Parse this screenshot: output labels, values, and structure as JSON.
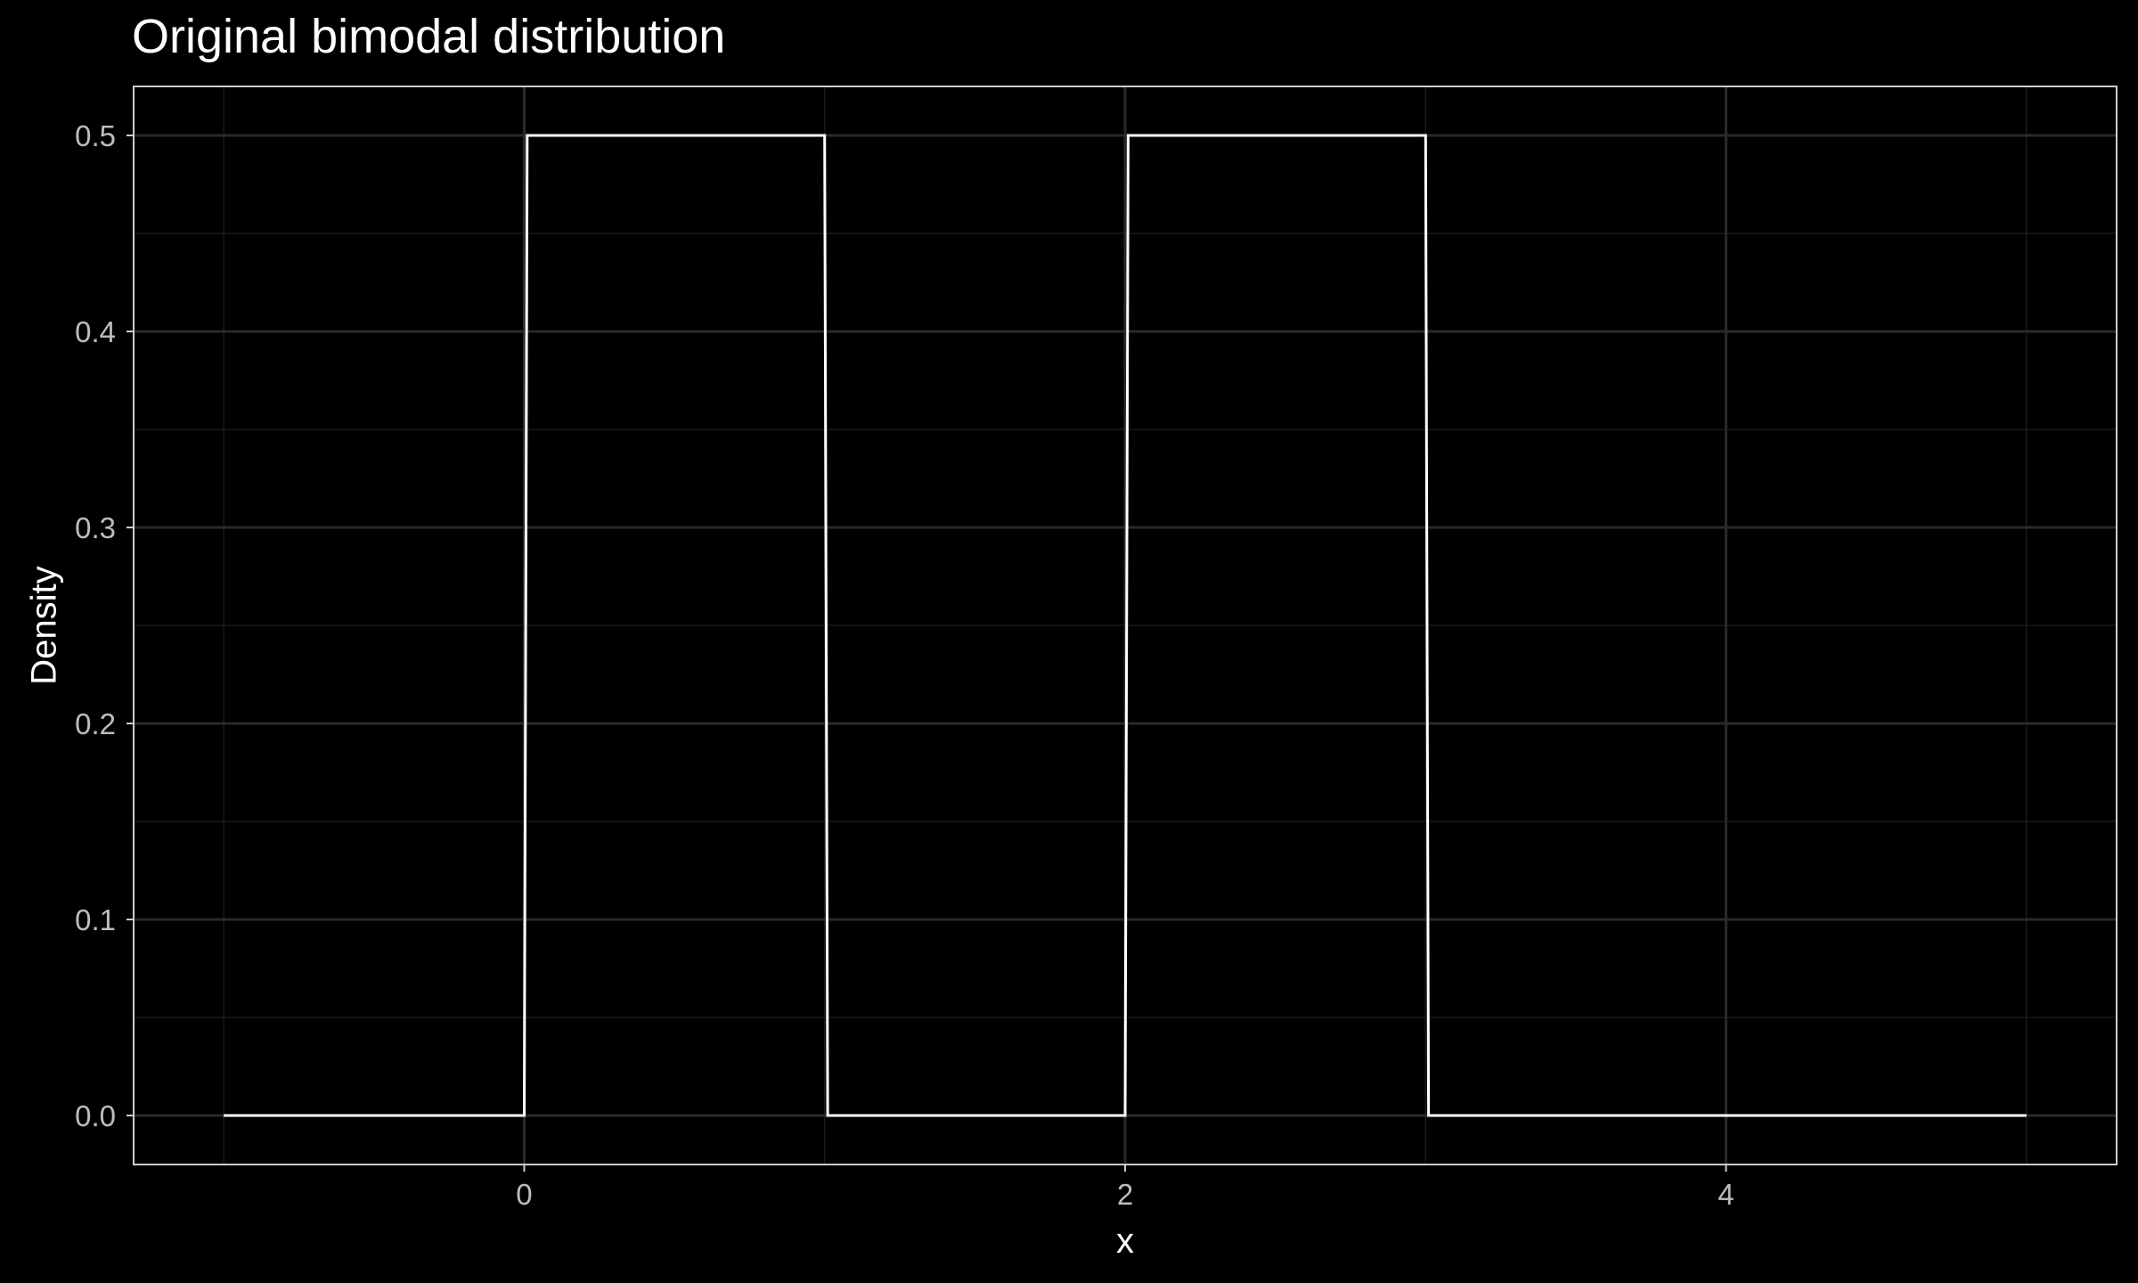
{
  "chart_data": {
    "type": "line",
    "title": "Original bimodal distribution",
    "xlabel": "x",
    "ylabel": "Density",
    "xlim": [
      -1.3,
      5.3
    ],
    "ylim": [
      -0.025,
      0.525
    ],
    "x_ticks": [
      0,
      2,
      4
    ],
    "x_tick_labels": [
      "0",
      "2",
      "4"
    ],
    "y_ticks": [
      0.0,
      0.1,
      0.2,
      0.3,
      0.4,
      0.5
    ],
    "y_tick_labels": [
      "0.0",
      "0.1",
      "0.2",
      "0.3",
      "0.4",
      "0.5"
    ],
    "x_minor_ticks": [
      -1,
      1,
      3,
      5
    ],
    "y_minor_ticks": [
      0.05,
      0.15,
      0.25,
      0.35,
      0.45
    ],
    "grid": true,
    "series": [
      {
        "x": [
          -1,
          0,
          0.01,
          1,
          1.01,
          2,
          2.01,
          3,
          3.01,
          5
        ],
        "y": [
          0,
          0,
          0.5,
          0.5,
          0,
          0,
          0.5,
          0.5,
          0,
          0
        ]
      }
    ],
    "colors": {
      "background": "#000000",
      "panel_border": "#cccccc",
      "grid_major": "#2a2a2a",
      "grid_minor": "#1a1a1a",
      "line": "#ffffff",
      "tick_text": "#bdbdbd",
      "title_text": "#ffffff"
    }
  }
}
